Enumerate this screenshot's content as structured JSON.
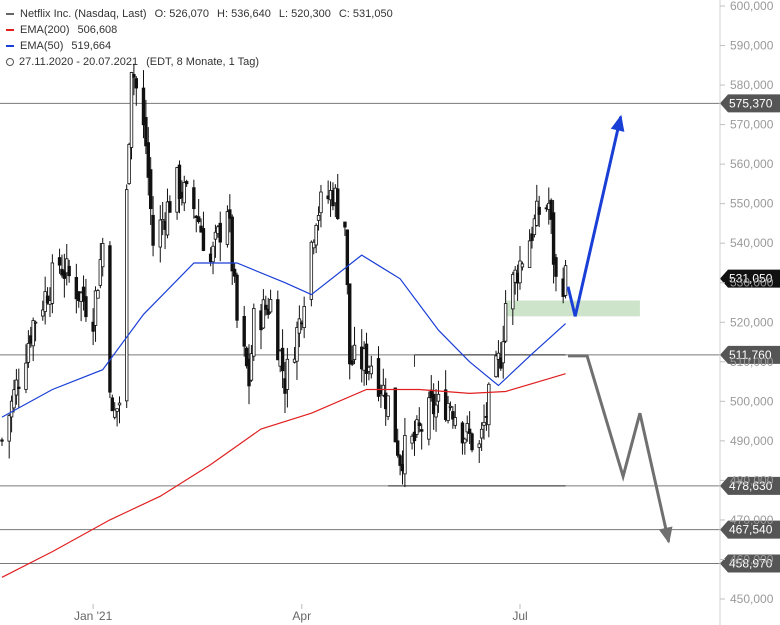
{
  "legend": {
    "title": "Netflix Inc. (Nasdaq, Last)",
    "ohlc": {
      "o_label": "O:",
      "o": "526,070",
      "h_label": "H:",
      "h": "536,640",
      "l_label": "L:",
      "l": "520,300",
      "c_label": "C:",
      "c": "531,050"
    },
    "ema200": {
      "label": "EMA(200)",
      "value": "506,608",
      "color": "#e02020"
    },
    "ema50": {
      "label": "EMA(50)",
      "value": "519,664",
      "color": "#1a3fd6"
    },
    "period": "27.11.2020 - 20.07.2021",
    "period_note": "(EDT, 8 Monate, 1 Tag)"
  },
  "chart_data": {
    "type": "candlestick",
    "ylim": [
      445,
      602
    ],
    "y_ticks": [
      "450,000",
      "460,000",
      "470,000",
      "480,000",
      "490,000",
      "500,000",
      "510,000",
      "520,000",
      "530,000",
      "540,000",
      "550,000",
      "560,000",
      "570,000",
      "580,000",
      "590,000",
      "600,000"
    ],
    "x_ticks": [
      {
        "label": "Jan '21",
        "date": "2021-01-04"
      },
      {
        "label": "Apr",
        "date": "2021-04-01"
      },
      {
        "label": "Jul",
        "date": "2021-07-01"
      }
    ],
    "date_range": [
      "2020-11-27",
      "2021-07-20"
    ],
    "horizontal_levels": [
      {
        "value": 575.37,
        "label": "575,370"
      },
      {
        "value": 511.76,
        "label": "511,760"
      },
      {
        "value": 478.63,
        "label": "478,630"
      },
      {
        "value": 467.54,
        "label": "467,540"
      },
      {
        "value": 458.97,
        "label": "458,970"
      }
    ],
    "last_price": {
      "value": 531.05,
      "label": "531,050"
    },
    "key_points": [
      {
        "x": "2020-11-27",
        "y": 490.0
      },
      {
        "x": "2020-12-10",
        "y": 520.0
      },
      {
        "x": "2020-12-21",
        "y": 535.0
      },
      {
        "x": "2021-01-04",
        "y": 522.0
      },
      {
        "x": "2021-01-08",
        "y": 540.0
      },
      {
        "x": "2021-01-12",
        "y": 495.0
      },
      {
        "x": "2021-01-15",
        "y": 500.0
      },
      {
        "x": "2021-01-20",
        "y": 586.0
      },
      {
        "x": "2021-01-26",
        "y": 565.0
      },
      {
        "x": "2021-01-29",
        "y": 540.0
      },
      {
        "x": "2021-02-08",
        "y": 555.0
      },
      {
        "x": "2021-02-16",
        "y": 548.0
      },
      {
        "x": "2021-02-22",
        "y": 535.0
      },
      {
        "x": "2021-03-01",
        "y": 550.0
      },
      {
        "x": "2021-03-05",
        "y": 520.0
      },
      {
        "x": "2021-03-10",
        "y": 505.0
      },
      {
        "x": "2021-03-12",
        "y": 520.0
      },
      {
        "x": "2021-03-19",
        "y": 525.0
      },
      {
        "x": "2021-03-25",
        "y": 505.0
      },
      {
        "x": "2021-03-31",
        "y": 520.0
      },
      {
        "x": "2021-04-07",
        "y": 548.0
      },
      {
        "x": "2021-04-14",
        "y": 553.0
      },
      {
        "x": "2021-04-19",
        "y": 545.0
      },
      {
        "x": "2021-04-21",
        "y": 510.0
      },
      {
        "x": "2021-04-30",
        "y": 510.0
      },
      {
        "x": "2021-05-07",
        "y": 500.0
      },
      {
        "x": "2021-05-12",
        "y": 486.0
      },
      {
        "x": "2021-05-18",
        "y": 490.0
      },
      {
        "x": "2021-05-25",
        "y": 498.0
      },
      {
        "x": "2021-06-02",
        "y": 500.0
      },
      {
        "x": "2021-06-08",
        "y": 492.0
      },
      {
        "x": "2021-06-14",
        "y": 488.0
      },
      {
        "x": "2021-06-18",
        "y": 500.0
      },
      {
        "x": "2021-06-23",
        "y": 512.0
      },
      {
        "x": "2021-06-25",
        "y": 525.0
      },
      {
        "x": "2021-07-01",
        "y": 535.0
      },
      {
        "x": "2021-07-09",
        "y": 548.0
      },
      {
        "x": "2021-07-13",
        "y": 550.0
      },
      {
        "x": "2021-07-16",
        "y": 530.0
      },
      {
        "x": "2021-07-20",
        "y": 531.05
      }
    ],
    "ema200_series": [
      {
        "x": "2020-11-27",
        "y": 455.5
      },
      {
        "x": "2020-12-18",
        "y": 462.0
      },
      {
        "x": "2021-01-11",
        "y": 470.0
      },
      {
        "x": "2021-02-01",
        "y": 476.0
      },
      {
        "x": "2021-02-22",
        "y": 484.0
      },
      {
        "x": "2021-03-15",
        "y": 493.0
      },
      {
        "x": "2021-04-05",
        "y": 497.0
      },
      {
        "x": "2021-04-28",
        "y": 503.0
      },
      {
        "x": "2021-05-20",
        "y": 503.0
      },
      {
        "x": "2021-06-10",
        "y": 502.0
      },
      {
        "x": "2021-06-25",
        "y": 502.5
      },
      {
        "x": "2021-07-20",
        "y": 507.0
      }
    ],
    "ema50_series": [
      {
        "x": "2020-11-27",
        "y": 496.0
      },
      {
        "x": "2020-12-18",
        "y": 503.0
      },
      {
        "x": "2021-01-08",
        "y": 508.0
      },
      {
        "x": "2021-01-25",
        "y": 522.0
      },
      {
        "x": "2021-02-15",
        "y": 535.0
      },
      {
        "x": "2021-03-05",
        "y": 535.0
      },
      {
        "x": "2021-03-25",
        "y": 530.0
      },
      {
        "x": "2021-04-05",
        "y": 527.0
      },
      {
        "x": "2021-04-26",
        "y": 537.0
      },
      {
        "x": "2021-05-12",
        "y": 531.0
      },
      {
        "x": "2021-05-28",
        "y": 518.0
      },
      {
        "x": "2021-06-10",
        "y": 510.0
      },
      {
        "x": "2021-06-22",
        "y": 504.0
      },
      {
        "x": "2021-07-06",
        "y": 512.0
      },
      {
        "x": "2021-07-20",
        "y": 519.664
      }
    ],
    "support_zone": {
      "x_start": "2021-06-25",
      "x_end": "2021-08-20",
      "y_low": 521.5,
      "y_high": 525.5,
      "color": "#c8e0c4"
    },
    "bull_scenario": {
      "color": "#1a3fd6",
      "points": [
        {
          "x": "2021-07-21",
          "y": 529.0
        },
        {
          "x": "2021-07-24",
          "y": 521.5
        },
        {
          "x": "2021-08-12",
          "y": 572.0
        }
      ]
    },
    "bear_scenario": {
      "color": "#707070",
      "points": [
        {
          "x": "2021-07-21",
          "y": 511.5
        },
        {
          "x": "2021-07-29",
          "y": 511.5
        },
        {
          "x": "2021-08-13",
          "y": 481.0
        },
        {
          "x": "2021-08-20",
          "y": 497.0
        },
        {
          "x": "2021-09-01",
          "y": 464.5
        }
      ]
    },
    "range_lines": [
      {
        "x_start": "2021-05-18",
        "x_end": "2021-07-20",
        "y": 511.76
      },
      {
        "x_start": "2021-05-07",
        "x_end": "2021-07-20",
        "y": 478.63
      }
    ]
  }
}
